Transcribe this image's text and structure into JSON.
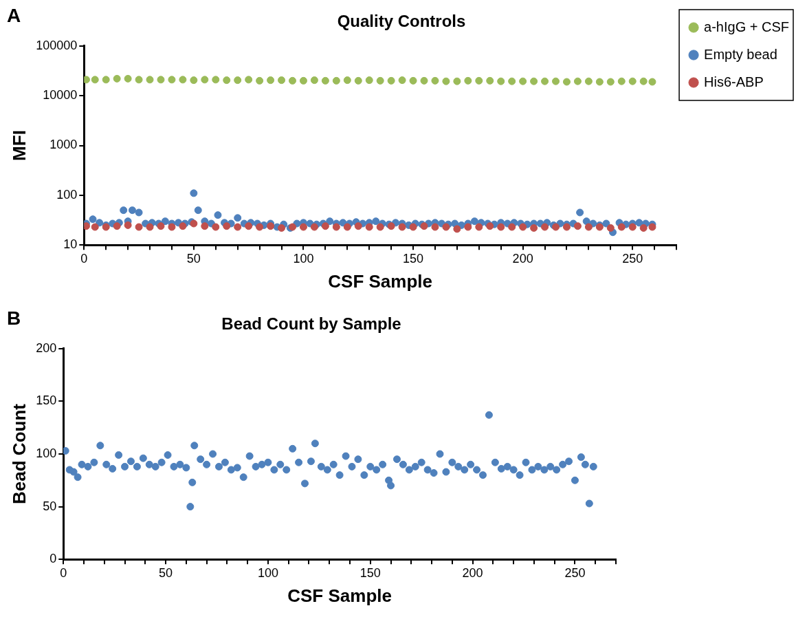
{
  "chart_data": [
    {
      "type": "scatter",
      "title": "Quality Controls",
      "xlabel": "CSF Sample",
      "ylabel": "MFI",
      "annotations": [
        "A"
      ],
      "log": "y",
      "grid": false,
      "legend": "right",
      "marker": "circle",
      "xlim": [
        0,
        270
      ],
      "xticks": [
        0,
        {
          "value": 10,
          "label": null
        },
        {
          "value": 20,
          "label": null
        },
        {
          "value": 30,
          "label": null
        },
        {
          "value": 40,
          "label": null
        },
        50,
        {
          "value": 60,
          "label": null
        },
        {
          "value": 70,
          "label": null
        },
        {
          "value": 80,
          "label": null
        },
        {
          "value": 90,
          "label": null
        },
        100,
        {
          "value": 110,
          "label": null
        },
        {
          "value": 120,
          "label": null
        },
        {
          "value": 130,
          "label": null
        },
        {
          "value": 140,
          "label": null
        },
        150,
        {
          "value": 160,
          "label": null
        },
        {
          "value": 170,
          "label": null
        },
        {
          "value": 180,
          "label": null
        },
        {
          "value": 190,
          "label": null
        },
        200,
        {
          "value": 210,
          "label": null
        },
        {
          "value": 220,
          "label": null
        },
        {
          "value": 230,
          "label": null
        },
        {
          "value": 240,
          "label": null
        },
        250,
        {
          "value": 260,
          "label": null
        },
        {
          "value": 270,
          "label": null
        }
      ],
      "ylim": [
        10,
        100000
      ],
      "yticks": [
        10,
        100,
        1000,
        10000,
        100000
      ],
      "series": [
        {
          "name": "a-hIgG + CSF",
          "color": "#9bbb59",
          "x": [
            1,
            5,
            10,
            15,
            20,
            25,
            30,
            35,
            40,
            45,
            50,
            55,
            60,
            65,
            70,
            75,
            80,
            85,
            90,
            95,
            100,
            105,
            110,
            115,
            120,
            125,
            130,
            135,
            140,
            145,
            150,
            155,
            160,
            165,
            170,
            175,
            180,
            185,
            190,
            195,
            200,
            205,
            210,
            215,
            220,
            225,
            230,
            235,
            240,
            245,
            250,
            255,
            259
          ],
          "values": [
            21000,
            21000,
            21000,
            22000,
            22000,
            21000,
            21000,
            21000,
            21000,
            21000,
            20500,
            21000,
            21000,
            20500,
            20500,
            21000,
            20000,
            20500,
            20500,
            20000,
            20000,
            20500,
            20000,
            20000,
            20500,
            20000,
            20500,
            20000,
            20000,
            20500,
            20000,
            20000,
            20000,
            19500,
            19500,
            20000,
            20000,
            20000,
            19500,
            19500,
            19500,
            19500,
            19500,
            19500,
            19000,
            19500,
            19500,
            19000,
            19000,
            19500,
            19500,
            19500,
            19000
          ]
        },
        {
          "name": "Empty bead",
          "color": "#4f81bd",
          "x": [
            1,
            4,
            7,
            10,
            13,
            16,
            18,
            20,
            22,
            25,
            28,
            31,
            34,
            37,
            40,
            43,
            46,
            49,
            50,
            52,
            55,
            58,
            61,
            64,
            67,
            70,
            73,
            76,
            79,
            82,
            85,
            88,
            91,
            94,
            97,
            100,
            103,
            106,
            109,
            112,
            115,
            118,
            121,
            124,
            127,
            130,
            133,
            136,
            139,
            142,
            145,
            148,
            151,
            154,
            157,
            160,
            163,
            166,
            169,
            172,
            175,
            178,
            181,
            184,
            187,
            190,
            193,
            196,
            199,
            202,
            205,
            208,
            211,
            214,
            217,
            220,
            223,
            226,
            229,
            232,
            235,
            238,
            241,
            244,
            247,
            250,
            253,
            256,
            259
          ],
          "values": [
            27,
            33,
            28,
            25,
            27,
            28,
            50,
            30,
            50,
            45,
            27,
            28,
            27,
            30,
            27,
            28,
            27,
            29,
            110,
            50,
            30,
            27,
            40,
            28,
            27,
            35,
            27,
            28,
            27,
            25,
            27,
            23,
            26,
            22,
            27,
            28,
            27,
            26,
            27,
            30,
            27,
            28,
            27,
            29,
            27,
            28,
            30,
            27,
            26,
            28,
            27,
            25,
            27,
            26,
            27,
            28,
            27,
            26,
            27,
            25,
            27,
            30,
            28,
            27,
            26,
            28,
            27,
            28,
            27,
            26,
            27,
            27,
            28,
            25,
            27,
            26,
            27,
            45,
            30,
            27,
            25,
            27,
            18,
            28,
            26,
            27,
            28,
            27,
            26
          ]
        },
        {
          "name": "His6-ABP",
          "color": "#c0504d",
          "x": [
            1,
            5,
            10,
            15,
            20,
            25,
            30,
            35,
            40,
            45,
            50,
            55,
            60,
            65,
            70,
            75,
            80,
            85,
            90,
            95,
            100,
            105,
            110,
            115,
            120,
            125,
            130,
            135,
            140,
            145,
            150,
            155,
            160,
            165,
            170,
            175,
            180,
            185,
            190,
            195,
            200,
            205,
            210,
            215,
            220,
            225,
            230,
            235,
            240,
            245,
            250,
            255,
            259
          ],
          "values": [
            24,
            23,
            23,
            24,
            25,
            23,
            23,
            24,
            23,
            24,
            27,
            24,
            23,
            24,
            23,
            24,
            23,
            24,
            22,
            23,
            23,
            23,
            24,
            23,
            23,
            24,
            23,
            23,
            24,
            23,
            23,
            24,
            23,
            23,
            21,
            23,
            23,
            24,
            23,
            23,
            23,
            22,
            23,
            23,
            23,
            24,
            23,
            23,
            22,
            23,
            23,
            22,
            23
          ]
        }
      ]
    },
    {
      "type": "scatter",
      "title": "Bead Count by Sample",
      "xlabel": "CSF Sample",
      "ylabel": "Bead Count",
      "annotations": [
        "B"
      ],
      "grid": false,
      "legend": false,
      "marker": "circle",
      "xlim": [
        0,
        270
      ],
      "xticks": [
        0,
        {
          "value": 10,
          "label": null
        },
        {
          "value": 20,
          "label": null
        },
        {
          "value": 30,
          "label": null
        },
        {
          "value": 40,
          "label": null
        },
        50,
        {
          "value": 60,
          "label": null
        },
        {
          "value": 70,
          "label": null
        },
        {
          "value": 80,
          "label": null
        },
        {
          "value": 90,
          "label": null
        },
        100,
        {
          "value": 110,
          "label": null
        },
        {
          "value": 120,
          "label": null
        },
        {
          "value": 130,
          "label": null
        },
        {
          "value": 140,
          "label": null
        },
        150,
        {
          "value": 160,
          "label": null
        },
        {
          "value": 170,
          "label": null
        },
        {
          "value": 180,
          "label": null
        },
        {
          "value": 190,
          "label": null
        },
        200,
        {
          "value": 210,
          "label": null
        },
        {
          "value": 220,
          "label": null
        },
        {
          "value": 230,
          "label": null
        },
        {
          "value": 240,
          "label": null
        },
        250,
        {
          "value": 260,
          "label": null
        },
        {
          "value": 270,
          "label": null
        }
      ],
      "ylim": [
        0,
        200
      ],
      "yticks": [
        0,
        50,
        100,
        150,
        200
      ],
      "series": [
        {
          "color": "#4f81bd",
          "x": [
            1,
            3,
            5,
            7,
            9,
            12,
            15,
            18,
            21,
            24,
            27,
            30,
            33,
            36,
            39,
            42,
            45,
            48,
            51,
            54,
            57,
            60,
            62,
            63,
            64,
            67,
            70,
            73,
            76,
            79,
            82,
            85,
            88,
            91,
            94,
            97,
            100,
            103,
            106,
            109,
            112,
            115,
            118,
            121,
            123,
            126,
            129,
            132,
            135,
            138,
            141,
            144,
            147,
            150,
            153,
            156,
            159,
            160,
            163,
            166,
            169,
            172,
            175,
            178,
            181,
            184,
            187,
            190,
            193,
            196,
            199,
            202,
            205,
            208,
            211,
            214,
            217,
            220,
            223,
            226,
            229,
            232,
            235,
            238,
            241,
            244,
            247,
            250,
            253,
            255,
            257,
            259
          ],
          "values": [
            103,
            85,
            83,
            78,
            90,
            88,
            92,
            108,
            90,
            86,
            99,
            88,
            93,
            88,
            96,
            90,
            88,
            92,
            99,
            88,
            90,
            87,
            50,
            73,
            108,
            95,
            90,
            100,
            88,
            92,
            85,
            87,
            78,
            98,
            88,
            90,
            92,
            85,
            90,
            85,
            105,
            92,
            72,
            93,
            110,
            88,
            85,
            90,
            80,
            98,
            88,
            95,
            80,
            88,
            85,
            90,
            75,
            70,
            95,
            90,
            85,
            88,
            92,
            85,
            82,
            100,
            83,
            92,
            88,
            85,
            90,
            85,
            80,
            137,
            92,
            86,
            88,
            85,
            80,
            92,
            85,
            88,
            85,
            88,
            85,
            90,
            93,
            75,
            97,
            90,
            53,
            88
          ]
        }
      ]
    }
  ]
}
